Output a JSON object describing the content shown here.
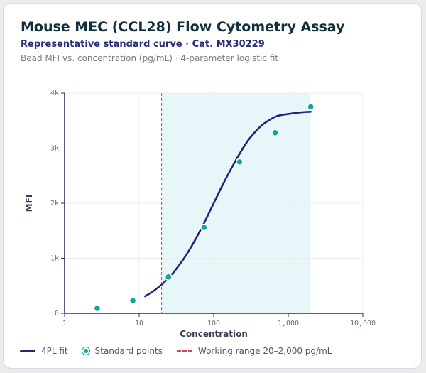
{
  "header": {
    "title": "Mouse MEC (CCL28) Flow Cytometry Assay",
    "subtitle": "Representative standard curve · Cat. MX30229",
    "description": "Bead MFI vs. concentration (pg/mL) · 4-parameter logistic fit"
  },
  "colors": {
    "fit_line": "#23237a",
    "points": "#13a39b",
    "working_range_marker": "#c94a55",
    "working_range_band": "#e7f6f8",
    "grid": "#ececef",
    "axis": "#2d2f66"
  },
  "chart_data": {
    "type": "scatter",
    "xlabel": "Concentration",
    "ylabel": "MFI",
    "x_scale": "log",
    "xlim": [
      1,
      10000
    ],
    "ylim": [
      0,
      4000
    ],
    "x_ticks": [
      1,
      10,
      100,
      1000,
      10000
    ],
    "x_tick_labels": [
      "1",
      "10",
      "100",
      "1,000",
      "10,000"
    ],
    "y_ticks": [
      0,
      1000,
      2000,
      3000,
      4000
    ],
    "y_tick_labels": [
      "0",
      "1k",
      "2k",
      "3k",
      "4k"
    ],
    "grid": true,
    "working_range": [
      20,
      2000
    ],
    "fit": {
      "name": "4PL fit",
      "x": [
        12,
        15,
        20,
        25,
        30,
        40,
        50,
        60,
        75,
        100,
        125,
        150,
        200,
        250,
        300,
        400,
        500,
        700,
        1000,
        1500,
        2000
      ],
      "y": [
        310,
        390,
        520,
        650,
        770,
        1000,
        1210,
        1400,
        1650,
        2000,
        2270,
        2480,
        2790,
        3010,
        3170,
        3360,
        3470,
        3580,
        3620,
        3650,
        3660
      ]
    },
    "series": [
      {
        "name": "Standard points",
        "x": [
          2.74,
          8.23,
          24.7,
          74.1,
          222,
          667,
          2000
        ],
        "y": [
          90,
          230,
          660,
          1560,
          2750,
          3280,
          3750
        ]
      }
    ]
  },
  "legend": {
    "fit_label": "4PL fit",
    "points_label": "Standard points",
    "range_label": "Working range 20–2,000 pg/mL"
  }
}
